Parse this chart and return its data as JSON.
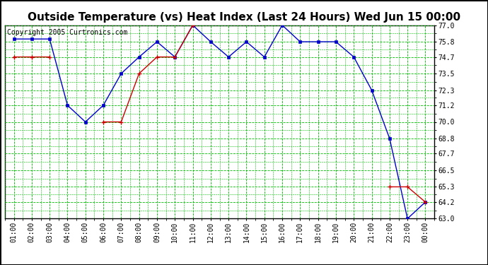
{
  "title": "Outside Temperature (vs) Heat Index (Last 24 Hours) Wed Jun 15 00:00",
  "copyright": "Copyright 2005 Curtronics.com",
  "x_labels": [
    "01:00",
    "02:00",
    "03:00",
    "04:00",
    "05:00",
    "06:00",
    "07:00",
    "08:00",
    "09:00",
    "10:00",
    "11:00",
    "12:00",
    "13:00",
    "14:00",
    "15:00",
    "16:00",
    "17:00",
    "18:00",
    "19:00",
    "20:00",
    "21:00",
    "22:00",
    "23:00",
    "00:00"
  ],
  "blue_data": [
    76.0,
    76.0,
    76.0,
    71.2,
    70.0,
    71.2,
    73.5,
    74.7,
    75.8,
    74.7,
    77.0,
    75.8,
    74.7,
    75.8,
    74.7,
    77.0,
    75.8,
    75.8,
    75.8,
    74.7,
    72.3,
    68.8,
    63.0,
    64.2
  ],
  "red_data": [
    74.7,
    74.7,
    74.7,
    null,
    null,
    70.0,
    70.0,
    73.5,
    74.7,
    74.7,
    77.0,
    null,
    null,
    null,
    null,
    null,
    null,
    null,
    null,
    null,
    null,
    65.3,
    65.3,
    64.2
  ],
  "blue_color": "#0000cc",
  "red_color": "#cc0000",
  "bg_color": "#ffffff",
  "plot_bg_color": "#ffffff",
  "grid_color": "#00bb00",
  "border_color": "#000000",
  "outer_border_color": "#000000",
  "ylim_min": 63.0,
  "ylim_max": 77.0,
  "yticks": [
    63.0,
    64.2,
    65.3,
    66.5,
    67.7,
    68.8,
    70.0,
    71.2,
    72.3,
    73.5,
    74.7,
    75.8,
    77.0
  ],
  "title_fontsize": 11,
  "copyright_fontsize": 7,
  "tick_fontsize": 7
}
